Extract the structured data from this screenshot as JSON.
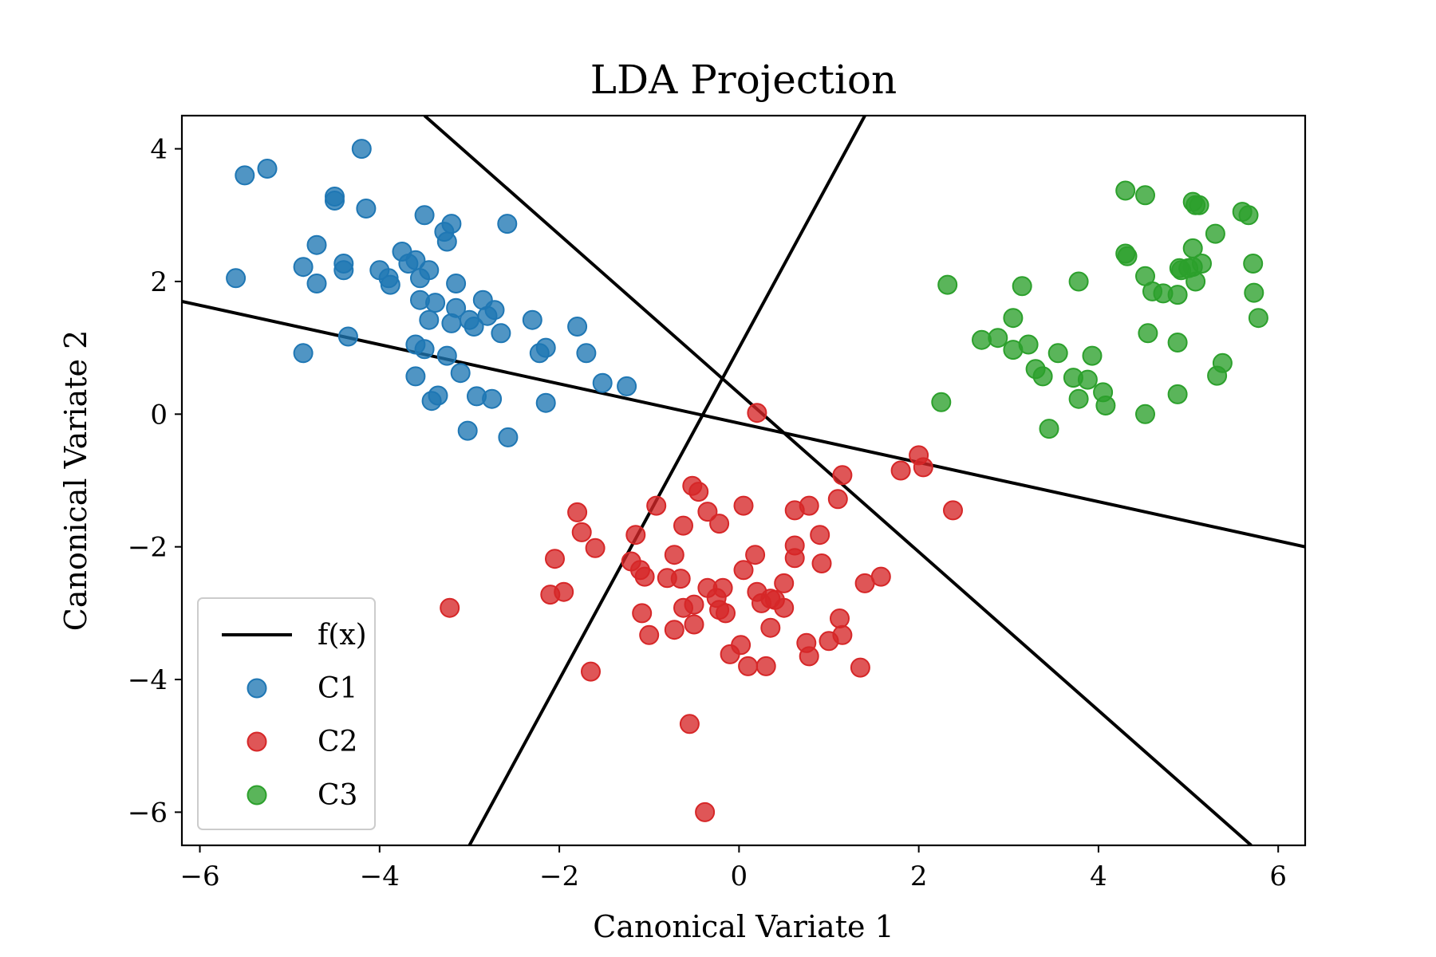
{
  "chart_data": {
    "type": "scatter",
    "title": "LDA Projection",
    "xlabel": "Canonical Variate 1",
    "ylabel": "Canonical Variate 2",
    "xlim": [
      -6.2,
      6.3
    ],
    "ylim": [
      -6.5,
      4.5
    ],
    "xticks": [
      -6,
      -4,
      -2,
      0,
      2,
      4,
      6
    ],
    "yticks": [
      -6,
      -4,
      -2,
      0,
      2,
      4
    ],
    "xtick_labels": [
      "−6",
      "−4",
      "−2",
      "0",
      "2",
      "4",
      "6"
    ],
    "ytick_labels": [
      "−6",
      "−4",
      "−2",
      "0",
      "2",
      "4"
    ],
    "grid": false,
    "legend": {
      "position": "lower-left"
    },
    "lines": [
      {
        "name": "f(x)",
        "color": "#000000",
        "points": [
          [
            -6.2,
            1.7
          ],
          [
            6.3,
            -2.0
          ]
        ]
      },
      {
        "name": "",
        "color": "#000000",
        "points": [
          [
            -3.5,
            4.5
          ],
          [
            5.7,
            -6.5
          ]
        ]
      },
      {
        "name": "",
        "color": "#000000",
        "points": [
          [
            -3.0,
            -6.5
          ],
          [
            1.4,
            4.5
          ]
        ]
      }
    ],
    "series": [
      {
        "name": "C1",
        "color": "#1f77b4",
        "points": [
          [
            -5.6,
            2.05
          ],
          [
            -5.5,
            3.6
          ],
          [
            -5.25,
            3.7
          ],
          [
            -4.85,
            0.92
          ],
          [
            -4.85,
            2.22
          ],
          [
            -4.7,
            2.55
          ],
          [
            -4.7,
            1.97
          ],
          [
            -4.5,
            3.28
          ],
          [
            -4.5,
            3.22
          ],
          [
            -4.4,
            2.27
          ],
          [
            -4.4,
            2.17
          ],
          [
            -4.35,
            1.17
          ],
          [
            -4.2,
            4.0
          ],
          [
            -4.15,
            3.1
          ],
          [
            -4.0,
            2.17
          ],
          [
            -3.9,
            2.05
          ],
          [
            -3.88,
            1.95
          ],
          [
            -3.75,
            2.45
          ],
          [
            -3.68,
            2.27
          ],
          [
            -3.6,
            2.32
          ],
          [
            -3.6,
            1.05
          ],
          [
            -3.6,
            0.57
          ],
          [
            -3.55,
            2.05
          ],
          [
            -3.55,
            1.72
          ],
          [
            -3.5,
            3.0
          ],
          [
            -3.5,
            0.98
          ],
          [
            -3.45,
            2.17
          ],
          [
            -3.45,
            1.42
          ],
          [
            -3.42,
            0.2
          ],
          [
            -3.38,
            1.68
          ],
          [
            -3.35,
            0.28
          ],
          [
            -3.28,
            2.75
          ],
          [
            -3.25,
            0.88
          ],
          [
            -3.2,
            2.87
          ],
          [
            -3.2,
            1.37
          ],
          [
            -3.15,
            1.97
          ],
          [
            -3.15,
            1.6
          ],
          [
            -3.1,
            0.62
          ],
          [
            -3.02,
            -0.25
          ],
          [
            -3.0,
            1.42
          ],
          [
            -2.95,
            1.32
          ],
          [
            -2.92,
            0.27
          ],
          [
            -2.85,
            1.72
          ],
          [
            -2.8,
            1.48
          ],
          [
            -2.75,
            0.23
          ],
          [
            -2.72,
            1.57
          ],
          [
            -2.65,
            1.22
          ],
          [
            -2.58,
            2.87
          ],
          [
            -2.57,
            -0.35
          ],
          [
            -2.3,
            1.42
          ],
          [
            -2.22,
            0.92
          ],
          [
            -2.15,
            1.0
          ],
          [
            -2.15,
            0.17
          ],
          [
            -1.8,
            1.32
          ],
          [
            -1.7,
            0.92
          ],
          [
            -1.52,
            0.47
          ],
          [
            -1.25,
            0.42
          ],
          [
            -3.25,
            2.6
          ]
        ]
      },
      {
        "name": "C2",
        "color": "#d62728",
        "points": [
          [
            0.2,
            0.02
          ],
          [
            1.15,
            -0.92
          ],
          [
            1.8,
            -0.85
          ],
          [
            2.0,
            -0.62
          ],
          [
            2.05,
            -0.8
          ],
          [
            2.38,
            -1.45
          ],
          [
            1.1,
            -1.28
          ],
          [
            -3.22,
            -2.92
          ],
          [
            -2.05,
            -2.18
          ],
          [
            -2.1,
            -2.72
          ],
          [
            -1.95,
            -2.68
          ],
          [
            -1.8,
            -1.48
          ],
          [
            -1.75,
            -1.78
          ],
          [
            -1.6,
            -2.02
          ],
          [
            -1.65,
            -3.88
          ],
          [
            -1.2,
            -2.22
          ],
          [
            -1.15,
            -1.82
          ],
          [
            -1.1,
            -2.35
          ],
          [
            -1.05,
            -2.45
          ],
          [
            -1.08,
            -3.0
          ],
          [
            -1.0,
            -3.33
          ],
          [
            -0.92,
            -1.38
          ],
          [
            -0.8,
            -2.47
          ],
          [
            -0.72,
            -2.12
          ],
          [
            -0.72,
            -3.25
          ],
          [
            -0.65,
            -2.48
          ],
          [
            -0.62,
            -2.92
          ],
          [
            -0.62,
            -1.68
          ],
          [
            -0.55,
            -4.67
          ],
          [
            -0.52,
            -1.08
          ],
          [
            -0.5,
            -2.87
          ],
          [
            -0.5,
            -3.17
          ],
          [
            -0.45,
            -1.17
          ],
          [
            -0.35,
            -1.47
          ],
          [
            -0.35,
            -2.62
          ],
          [
            -0.25,
            -2.77
          ],
          [
            -0.22,
            -2.95
          ],
          [
            -0.22,
            -1.65
          ],
          [
            -0.18,
            -2.62
          ],
          [
            -0.15,
            -3.0
          ],
          [
            -0.1,
            -3.62
          ],
          [
            -0.38,
            -6.0
          ],
          [
            0.02,
            -3.48
          ],
          [
            0.05,
            -2.35
          ],
          [
            0.1,
            -3.8
          ],
          [
            0.18,
            -2.12
          ],
          [
            0.2,
            -2.68
          ],
          [
            0.25,
            -2.85
          ],
          [
            0.3,
            -3.8
          ],
          [
            0.35,
            -2.78
          ],
          [
            0.4,
            -2.8
          ],
          [
            0.35,
            -3.22
          ],
          [
            0.5,
            -2.55
          ],
          [
            0.5,
            -2.92
          ],
          [
            0.62,
            -1.45
          ],
          [
            0.62,
            -1.98
          ],
          [
            0.62,
            -2.17
          ],
          [
            0.75,
            -3.45
          ],
          [
            0.78,
            -1.38
          ],
          [
            0.78,
            -3.65
          ],
          [
            0.9,
            -1.82
          ],
          [
            0.92,
            -2.25
          ],
          [
            1.0,
            -3.42
          ],
          [
            1.12,
            -3.08
          ],
          [
            1.15,
            -3.33
          ],
          [
            1.35,
            -3.82
          ],
          [
            1.4,
            -2.55
          ],
          [
            1.58,
            -2.45
          ],
          [
            0.05,
            -1.38
          ]
        ]
      },
      {
        "name": "C3",
        "color": "#2ca02c",
        "points": [
          [
            4.3,
            3.37
          ],
          [
            4.52,
            3.3
          ],
          [
            5.05,
            3.2
          ],
          [
            5.08,
            3.15
          ],
          [
            5.12,
            3.15
          ],
          [
            5.6,
            3.05
          ],
          [
            5.67,
            3.0
          ],
          [
            5.3,
            2.72
          ],
          [
            5.05,
            2.5
          ],
          [
            4.3,
            2.42
          ],
          [
            4.32,
            2.38
          ],
          [
            5.72,
            2.27
          ],
          [
            4.9,
            2.2
          ],
          [
            5.0,
            2.2
          ],
          [
            5.15,
            2.27
          ],
          [
            4.92,
            2.17
          ],
          [
            5.05,
            2.22
          ],
          [
            4.52,
            2.08
          ],
          [
            5.08,
            2.0
          ],
          [
            3.15,
            1.93
          ],
          [
            3.78,
            2.0
          ],
          [
            2.32,
            1.95
          ],
          [
            4.6,
            1.85
          ],
          [
            4.72,
            1.82
          ],
          [
            4.88,
            1.8
          ],
          [
            5.73,
            1.83
          ],
          [
            5.78,
            1.45
          ],
          [
            3.05,
            1.45
          ],
          [
            4.55,
            1.22
          ],
          [
            2.7,
            1.12
          ],
          [
            2.88,
            1.15
          ],
          [
            3.22,
            1.05
          ],
          [
            3.05,
            0.97
          ],
          [
            3.55,
            0.92
          ],
          [
            3.93,
            0.88
          ],
          [
            4.88,
            1.08
          ],
          [
            5.38,
            0.77
          ],
          [
            3.3,
            0.68
          ],
          [
            3.38,
            0.57
          ],
          [
            3.72,
            0.55
          ],
          [
            3.88,
            0.52
          ],
          [
            4.05,
            0.33
          ],
          [
            5.32,
            0.58
          ],
          [
            2.25,
            0.18
          ],
          [
            3.78,
            0.23
          ],
          [
            4.08,
            0.13
          ],
          [
            4.88,
            0.3
          ],
          [
            4.52,
            0.0
          ],
          [
            3.45,
            -0.22
          ]
        ]
      }
    ]
  }
}
